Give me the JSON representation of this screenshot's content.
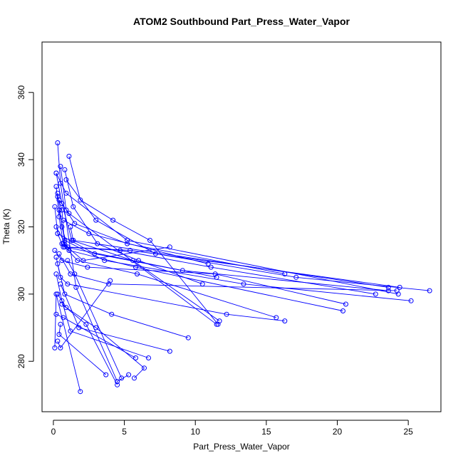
{
  "chart_data": {
    "type": "line",
    "title": "ATOM2 Southbound Part_Press_Water_Vapor",
    "xlabel": "Part_Press_Water_Vapor",
    "ylabel": "Theta (K)",
    "xlim": [
      -0.8,
      27.3
    ],
    "ylim": [
      265,
      375
    ],
    "xticks": [
      0,
      5,
      10,
      15,
      20,
      25
    ],
    "yticks": [
      280,
      300,
      320,
      340,
      360
    ],
    "grid": false,
    "color": "#0000ff",
    "series": [
      {
        "x": [
          0.3,
          0.5,
          1.6,
          4.5,
          5.3
        ],
        "y": [
          345,
          333,
          302,
          274,
          276
        ]
      },
      {
        "x": [
          1.1,
          1.9,
          4.2,
          6.8,
          11.6
        ],
        "y": [
          341,
          328,
          322,
          316,
          291
        ]
      },
      {
        "x": [
          0.8,
          1.4,
          3.1,
          6.0,
          10.5
        ],
        "y": [
          337,
          326,
          315,
          310,
          303
        ]
      },
      {
        "x": [
          0.2,
          0.6,
          1.3,
          5.6,
          11.7
        ],
        "y": [
          336,
          327,
          316,
          310,
          292
        ]
      },
      {
        "x": [
          0.5,
          0.9,
          1.5,
          5.2,
          16.3
        ],
        "y": [
          338,
          325,
          321,
          315,
          306
        ]
      },
      {
        "x": [
          0.2,
          0.4,
          0.7,
          2.1,
          8.2
        ],
        "y": [
          332,
          323,
          315,
          310,
          314
        ]
      },
      {
        "x": [
          0.3,
          0.6,
          1.0,
          5.4,
          24.4
        ],
        "y": [
          330,
          320,
          314,
          313,
          302
        ]
      },
      {
        "x": [
          0.9,
          3.0,
          7.2,
          17.1,
          26.5
        ],
        "y": [
          334,
          322,
          312,
          305,
          301
        ]
      },
      {
        "x": [
          0.1,
          0.3,
          2.9,
          9.1,
          23.6
        ],
        "y": [
          326,
          318,
          312,
          307,
          301
        ]
      },
      {
        "x": [
          0.4,
          0.8,
          3.6,
          13.4,
          25.2
        ],
        "y": [
          325,
          316,
          310,
          303,
          298
        ]
      },
      {
        "x": [
          0.2,
          1.1,
          5.8,
          20.4
        ],
        "y": [
          320,
          313,
          308,
          295
        ]
      },
      {
        "x": [
          0.3,
          0.7,
          4.7,
          11.1,
          22.7
        ],
        "y": [
          318,
          314,
          313,
          308,
          300
        ]
      },
      {
        "x": [
          0.6,
          1.7,
          5.9,
          15.7
        ],
        "y": [
          315,
          310,
          306,
          293
        ]
      },
      {
        "x": [
          0.1,
          0.6,
          2.4,
          11.4,
          20.6
        ],
        "y": [
          313,
          310,
          308,
          306,
          297
        ]
      },
      {
        "x": [
          0.4,
          1.2,
          3.9,
          24.2
        ],
        "y": [
          312,
          306,
          303,
          301
        ]
      },
      {
        "x": [
          0.2,
          0.5,
          1.0,
          12.2,
          16.3
        ],
        "y": [
          311,
          305,
          303,
          294,
          292
        ]
      },
      {
        "x": [
          0.3,
          0.8,
          4.1,
          9.5
        ],
        "y": [
          309,
          300,
          294,
          287
        ]
      },
      {
        "x": [
          0.2,
          0.6,
          1.2,
          6.7
        ],
        "y": [
          306,
          298,
          289,
          281
        ]
      },
      {
        "x": [
          0.5,
          1.8,
          8.2
        ],
        "y": [
          303,
          290,
          283
        ]
      },
      {
        "x": [
          0.3,
          0.9,
          3.0,
          6.4,
          5.7
        ],
        "y": [
          300,
          296,
          290,
          278,
          275
        ]
      },
      {
        "x": [
          0.6,
          2.3,
          4.5
        ],
        "y": [
          297,
          291,
          273
        ]
      },
      {
        "x": [
          0.2,
          0.7,
          5.8
        ],
        "y": [
          294,
          293,
          281
        ]
      },
      {
        "x": [
          0.5,
          0.4,
          3.7
        ],
        "y": [
          291,
          288,
          276
        ]
      },
      {
        "x": [
          1.0,
          1.5,
          4.8
        ],
        "y": [
          310,
          306,
          275
        ]
      },
      {
        "x": [
          0.3,
          0.5,
          4.0
        ],
        "y": [
          286,
          284,
          304
        ]
      },
      {
        "x": [
          0.1,
          0.2,
          1.9
        ],
        "y": [
          284,
          300,
          271
        ]
      },
      {
        "x": [
          0.4,
          1.1,
          11.5
        ],
        "y": [
          328,
          324,
          291
        ]
      },
      {
        "x": [
          0.7,
          2.5,
          10.9
        ],
        "y": [
          322,
          318,
          309
        ]
      },
      {
        "x": [
          0.2,
          0.9,
          5.2,
          24.3
        ],
        "y": [
          336,
          330,
          316,
          300
        ]
      },
      {
        "x": [
          1.2,
          1.4,
          23.6
        ],
        "y": [
          320,
          316,
          302
        ]
      },
      {
        "x": [
          0.3,
          0.6,
          0.8,
          11.5
        ],
        "y": [
          329,
          325,
          314,
          305
        ]
      }
    ]
  }
}
